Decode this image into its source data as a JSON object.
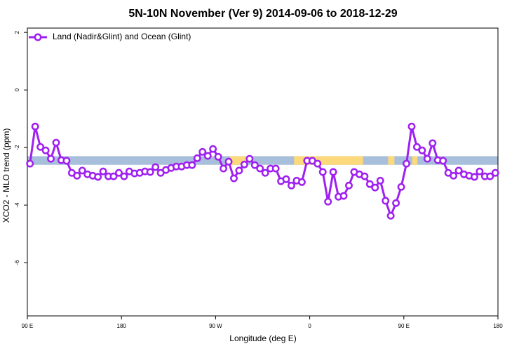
{
  "chart_data": {
    "type": "line",
    "title": "5N-10N November (Ver 9)   2014-09-06 to 2018-12-29",
    "xlabel": "Longitude (deg E)",
    "ylabel": "XCO2 - MLO trend (ppm)",
    "xlim": [
      90,
      540
    ],
    "ylim": [
      -7.85,
      2.15
    ],
    "xticks": [
      {
        "value": 90,
        "label": "90 E"
      },
      180,
      {
        "value": 270,
        "label": "90 W"
      },
      {
        "value": 360,
        "label": "0"
      },
      {
        "value": 450,
        "label": "90 E"
      },
      {
        "value": 540,
        "label": "180"
      }
    ],
    "yticks": [
      2,
      0,
      -2,
      -4,
      -6
    ],
    "legend": "top-left",
    "band": {
      "range": [
        -2.6,
        -2.3
      ],
      "color": "#a8bfdc",
      "highlight_color": "#fcd97a",
      "highlights": [
        [
          284,
          300
        ],
        [
          345,
          411
        ],
        [
          435,
          441
        ],
        [
          458,
          463
        ]
      ]
    },
    "x": [
      92.5,
      97.5,
      102.5,
      107.5,
      112.5,
      117.5,
      122.5,
      127.5,
      132.5,
      137.5,
      142.5,
      147.5,
      152.5,
      157.5,
      162.5,
      167.5,
      172.5,
      177.5,
      182.5,
      187.5,
      192.5,
      197.5,
      202.5,
      207.5,
      212.5,
      217.5,
      222.5,
      227.5,
      232.5,
      237.5,
      242.5,
      247.5,
      252.5,
      257.5,
      262.5,
      267.5,
      272.5,
      277.5,
      282.5,
      287.5,
      292.5,
      297.5,
      302.5,
      307.5,
      312.5,
      317.5,
      322.5,
      327.5,
      332.5,
      337.5,
      342.5,
      347.5,
      352.5,
      357.5,
      362.5,
      367.5,
      372.5,
      377.5,
      382.5,
      387.5,
      392.5,
      397.5,
      402.5,
      407.5,
      412.5,
      417.5,
      422.5,
      427.5,
      432.5,
      437.5,
      442.5,
      447.5,
      452.5,
      457.5,
      462.5,
      467.5,
      472.5,
      477.5,
      482.5,
      487.5,
      492.5,
      497.5,
      502.5,
      507.5,
      512.5,
      517.5,
      522.5,
      527.5,
      532.5,
      537.5
    ],
    "series": [
      {
        "name": "Land (Nadir&Glint) and Ocean (Glint)",
        "color": "#a020f0",
        "values": [
          -2.56,
          -1.27,
          -1.98,
          -2.1,
          -2.39,
          -1.83,
          -2.44,
          -2.46,
          -2.88,
          -2.98,
          -2.8,
          -2.93,
          -2.98,
          -3.02,
          -2.83,
          -3.0,
          -3.0,
          -2.88,
          -3.0,
          -2.83,
          -2.9,
          -2.88,
          -2.83,
          -2.85,
          -2.68,
          -2.88,
          -2.78,
          -2.71,
          -2.66,
          -2.66,
          -2.61,
          -2.61,
          -2.37,
          -2.15,
          -2.29,
          -2.05,
          -2.32,
          -2.73,
          -2.49,
          -3.07,
          -2.8,
          -2.59,
          -2.39,
          -2.61,
          -2.73,
          -2.88,
          -2.73,
          -2.73,
          -3.17,
          -3.1,
          -3.32,
          -3.15,
          -3.2,
          -2.46,
          -2.46,
          -2.56,
          -2.85,
          -3.88,
          -2.85,
          -3.71,
          -3.68,
          -3.32,
          -2.85,
          -2.93,
          -3.0,
          -3.27,
          -3.39,
          -3.15,
          -3.85,
          -4.37,
          -3.93,
          -3.37,
          -2.56,
          -1.27,
          -1.98,
          -2.1,
          -2.39,
          -1.85,
          -2.44,
          -2.46,
          -2.88,
          -2.98,
          -2.8,
          -2.93,
          -2.98,
          -3.02,
          -2.83,
          -3.0,
          -3.0,
          -2.88
        ]
      }
    ]
  }
}
